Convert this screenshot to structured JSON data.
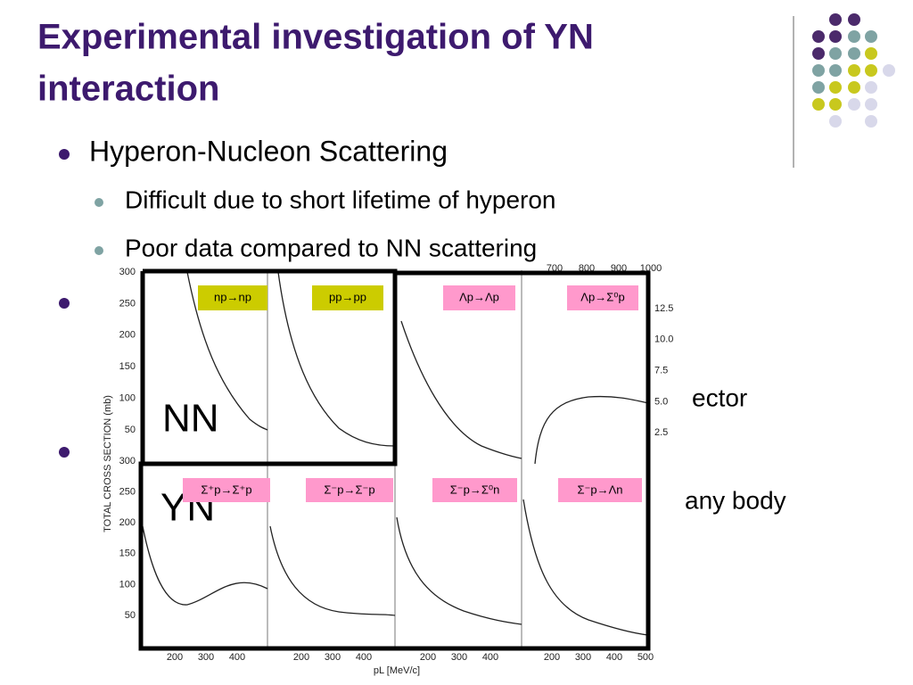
{
  "title_lines": [
    "Experimental investigation of YN",
    "interaction"
  ],
  "bullets": [
    {
      "text": "Hyperon-Nucleon Scattering",
      "sub": [
        "Difficult due to short lifetime of hyperon",
        "Poor data compared to NN scattering"
      ]
    }
  ],
  "fragments": [
    "ector",
    "any body"
  ],
  "figure": {
    "y_axis_label": "TOTAL CROSS SECTION (mb)",
    "x_axis_label": "pL [MeV/c]",
    "group_labels": [
      "NN",
      "YN"
    ],
    "top_left_yticks": [
      "300",
      "250",
      "200",
      "150",
      "100",
      "50"
    ],
    "bottom_left_yticks": [
      "300",
      "250",
      "200",
      "150",
      "100",
      "50"
    ],
    "right_yticks": [
      "12.5",
      "10.0",
      "7.5",
      "5.0",
      "2.5"
    ],
    "top_xticks": [
      "700",
      "800",
      "900",
      "1000"
    ],
    "bottom_xticks": [
      [
        "200",
        "300",
        "400"
      ],
      [
        "200",
        "300",
        "400"
      ],
      [
        "200",
        "300",
        "400"
      ],
      [
        "200",
        "300",
        "400",
        "500"
      ]
    ],
    "top_panels": [
      "np→np",
      "pp→pp",
      "Λp→Λp",
      "Λp→Σ⁰p"
    ],
    "bottom_panels": [
      "Σ⁺p→Σ⁺p",
      "Σ⁻p→Σ⁻p",
      "Σ⁻p→Σ⁰n",
      "Σ⁻p→Λn"
    ]
  }
}
